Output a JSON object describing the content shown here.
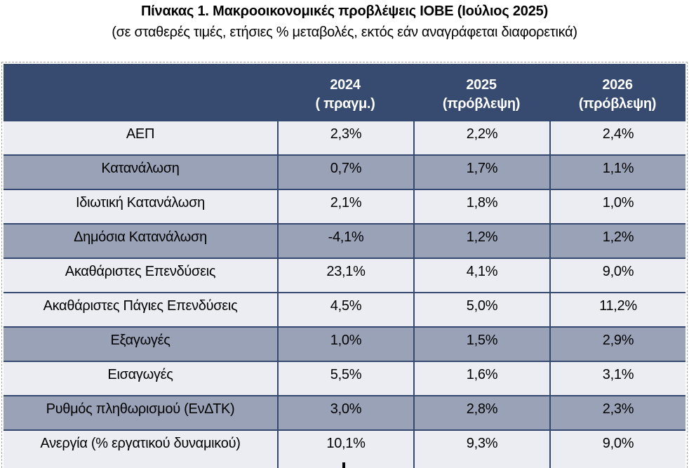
{
  "page": {
    "title": "Πίνακας 1. Μακροοικονομικές προβλέψεις ΙΟΒΕ (Ιούλιος 2025)",
    "subtitle": "(σε σταθερές τιμές, ετήσιες % μεταβολές, εκτός εάν αναγράφεται διαφορετικά)"
  },
  "table": {
    "columns": [
      {
        "year": "2024",
        "note": "( πραγμ.)"
      },
      {
        "year": "2025",
        "note": "(πρόβλεψη)"
      },
      {
        "year": "2026",
        "note": "(πρόβλεψη)"
      }
    ],
    "rows": [
      {
        "label": "ΑΕΠ",
        "values": [
          "2,3%",
          "2,2%",
          "2,4%"
        ]
      },
      {
        "label": "Κατανάλωση",
        "values": [
          "0,7%",
          "1,7%",
          "1,1%"
        ]
      },
      {
        "label": "Ιδιωτική Κατανάλωση",
        "values": [
          "2,1%",
          "1,8%",
          "1,0%"
        ]
      },
      {
        "label": "Δημόσια Κατανάλωση",
        "values": [
          "-4,1%",
          "1,2%",
          "1,2%"
        ]
      },
      {
        "label": "Ακαθάριστες Επενδύσεις",
        "values": [
          "23,1%",
          "4,1%",
          "9,0%"
        ]
      },
      {
        "label": "Ακαθάριστες Πάγιες Επενδύσεις",
        "values": [
          "4,5%",
          "5,0%",
          "11,2%"
        ]
      },
      {
        "label": "Εξαγωγές",
        "values": [
          "1,0%",
          "1,5%",
          "2,9%"
        ]
      },
      {
        "label": "Εισαγωγές",
        "values": [
          "5,5%",
          "1,6%",
          "3,1%"
        ]
      },
      {
        "label": "Ρυθμός πληθωρισμού (ΕνΔΤΚ)",
        "values": [
          "3,0%",
          "2,8%",
          "2,3%"
        ]
      },
      {
        "label": "Ανεργία (% εργατικού δυναμικού)",
        "values": [
          "10,1%",
          "9,3%",
          "9,0%"
        ]
      }
    ]
  },
  "colors": {
    "header_bg": "#374A70",
    "row_gray_bg": "#99A2B7",
    "row_light_bg": "#ECEDF2",
    "grid_line": "#35486F",
    "header_text": "#FFFFFF",
    "body_text": "#000000",
    "dashed_border": "#A6A6A6"
  }
}
